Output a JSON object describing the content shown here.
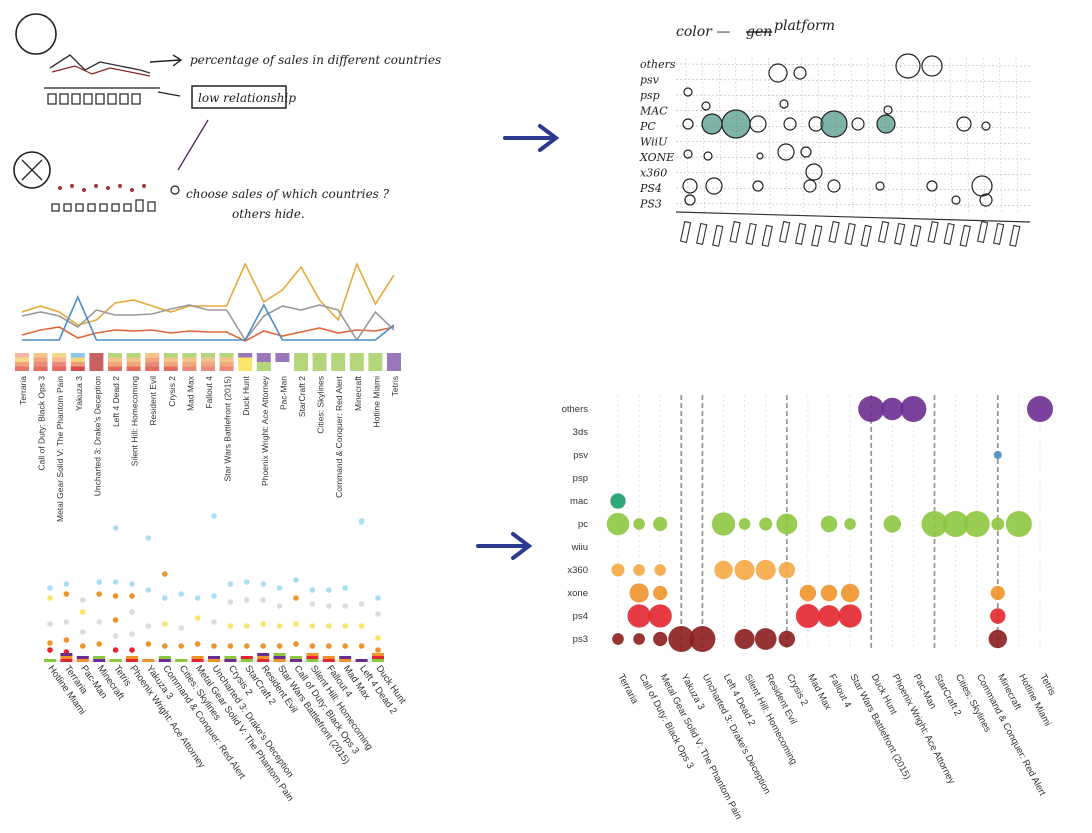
{
  "sketch_top_left": {
    "note_1": "percentage of sales in different countries",
    "note_2": "low relationship",
    "note_3": "choose sales of which countries ?",
    "note_4": "others hide."
  },
  "sketch_top_right": {
    "title_color": "color —",
    "title_strike": "gen",
    "title_platform": "platform",
    "rows": [
      "others",
      "psv",
      "psp",
      "MAC",
      "PC",
      "WiiU",
      "XONE",
      "x360",
      "PS4",
      "PS3"
    ]
  },
  "line_chart": {
    "colors": {
      "orange": "#e8a93a",
      "red": "#e0663a",
      "gray": "#9a9a9a",
      "blue": "#4a8fc8"
    }
  },
  "games_order_1": [
    "Terraria",
    "Call of Duty: Black Ops 3",
    "Metal Gear Solid V: The Phantom Pain",
    "Yakuza 3",
    "Uncharted 3: Drake's Deception",
    "Left 4 Dead 2",
    "Silent Hill: Homecoming",
    "Resident Evil",
    "Crysis 2",
    "Mad Max",
    "Fallout 4",
    "Star Wars Battlefront (2015)",
    "Duck Hunt",
    "Phoenix Wright: Ace Attorney",
    "Pac-Man",
    "StarCraft 2",
    "Cities: Skylines",
    "Command & Conquer: Red Alert",
    "Minecraft",
    "Hotline Miami",
    "Tetris"
  ],
  "games_order_2": [
    "Hotline Miami",
    "Terraria",
    "Pac-Man",
    "Minecraft",
    "Tetris",
    "Phoenix Wright: Ace Attorney",
    "Yakuza 3",
    "Command & Conquer: Red Alert",
    "Cities: Skylines",
    "Metal Gear Solid V: The Phantom Pain",
    "Uncharted 3: Drake's Deception",
    "Crysis 2",
    "StarCraft 2",
    "Resident Evil",
    "Star Wars Battlefront (2015)",
    "Call of Duty: Black Ops 3",
    "Silent Hill: Homecoming",
    "Fallout 4",
    "Mad Max",
    "Left 4 Dead 2",
    "Duck Hunt"
  ],
  "chart_data": {
    "type": "scatter",
    "title": "",
    "platforms": [
      "others",
      "3ds",
      "psv",
      "psp",
      "mac",
      "pc",
      "wiiu",
      "x360",
      "xone",
      "ps4",
      "ps3"
    ],
    "games": [
      "Terraria",
      "Call of Duty: Black Ops 3",
      "Metal Gear Solid V: The Phantom Pain",
      "Yakuza 3",
      "Uncharted 3: Drake's Deception",
      "Left 4 Dead 2",
      "Silent Hill: Homecoming",
      "Resident Evil",
      "Crysis 2",
      "Mad Max",
      "Fallout 4",
      "Star Wars Battlefront (2015)",
      "Duck Hunt",
      "Phoenix Wright: Ace Attorney",
      "Pac-Man",
      "StarCraft 2",
      "Cities: Skylines",
      "Command & Conquer: Red Alert",
      "Minecraft",
      "Hotline Miami",
      "Tetris"
    ],
    "platform_colors": {
      "others": "#6b2d8f",
      "3ds": "#6b2d8f",
      "psv": "#4a8fc8",
      "psp": "#4a8fc8",
      "mac": "#1aa06b",
      "pc": "#8dc63f",
      "wiiu": "#8dc63f",
      "x360": "#f5a742",
      "xone": "#f0932b",
      "ps4": "#e3262e",
      "ps3": "#8b1e1e"
    },
    "points": [
      {
        "game": 0,
        "platform": "mac",
        "size": 0.35
      },
      {
        "game": 0,
        "platform": "pc",
        "size": 0.75
      },
      {
        "game": 0,
        "platform": "x360",
        "size": 0.25
      },
      {
        "game": 0,
        "platform": "ps3",
        "size": 0.2
      },
      {
        "game": 1,
        "platform": "pc",
        "size": 0.2
      },
      {
        "game": 1,
        "platform": "x360",
        "size": 0.2
      },
      {
        "game": 1,
        "platform": "xone",
        "size": 0.55
      },
      {
        "game": 1,
        "platform": "ps4",
        "size": 0.8
      },
      {
        "game": 1,
        "platform": "ps3",
        "size": 0.2
      },
      {
        "game": 2,
        "platform": "pc",
        "size": 0.3
      },
      {
        "game": 2,
        "platform": "x360",
        "size": 0.2
      },
      {
        "game": 2,
        "platform": "xone",
        "size": 0.3
      },
      {
        "game": 2,
        "platform": "ps4",
        "size": 0.8
      },
      {
        "game": 2,
        "platform": "ps3",
        "size": 0.3
      },
      {
        "game": 3,
        "platform": "ps3",
        "size": 1.0
      },
      {
        "game": 4,
        "platform": "ps3",
        "size": 1.0
      },
      {
        "game": 5,
        "platform": "pc",
        "size": 0.8
      },
      {
        "game": 5,
        "platform": "x360",
        "size": 0.5
      },
      {
        "game": 6,
        "platform": "pc",
        "size": 0.2
      },
      {
        "game": 6,
        "platform": "x360",
        "size": 0.6
      },
      {
        "game": 6,
        "platform": "ps3",
        "size": 0.6
      },
      {
        "game": 7,
        "platform": "pc",
        "size": 0.25
      },
      {
        "game": 7,
        "platform": "x360",
        "size": 0.6
      },
      {
        "game": 7,
        "platform": "ps3",
        "size": 0.7
      },
      {
        "game": 8,
        "platform": "pc",
        "size": 0.65
      },
      {
        "game": 8,
        "platform": "x360",
        "size": 0.4
      },
      {
        "game": 8,
        "platform": "ps3",
        "size": 0.4
      },
      {
        "game": 9,
        "platform": "xone",
        "size": 0.4
      },
      {
        "game": 9,
        "platform": "ps4",
        "size": 0.85
      },
      {
        "game": 10,
        "platform": "pc",
        "size": 0.4
      },
      {
        "game": 10,
        "platform": "xone",
        "size": 0.4
      },
      {
        "game": 10,
        "platform": "ps4",
        "size": 0.7
      },
      {
        "game": 11,
        "platform": "pc",
        "size": 0.2
      },
      {
        "game": 11,
        "platform": "xone",
        "size": 0.5
      },
      {
        "game": 11,
        "platform": "ps4",
        "size": 0.8
      },
      {
        "game": 12,
        "platform": "others",
        "size": 1.0
      },
      {
        "game": 13,
        "platform": "others",
        "size": 0.75
      },
      {
        "game": 13,
        "platform": "pc",
        "size": 0.45
      },
      {
        "game": 14,
        "platform": "others",
        "size": 1.0
      },
      {
        "game": 15,
        "platform": "pc",
        "size": 1.0
      },
      {
        "game": 16,
        "platform": "pc",
        "size": 1.0
      },
      {
        "game": 17,
        "platform": "pc",
        "size": 1.0
      },
      {
        "game": 18,
        "platform": "psv",
        "size": 0.1
      },
      {
        "game": 18,
        "platform": "pc",
        "size": 0.25
      },
      {
        "game": 18,
        "platform": "xone",
        "size": 0.3
      },
      {
        "game": 18,
        "platform": "ps4",
        "size": 0.35
      },
      {
        "game": 18,
        "platform": "ps3",
        "size": 0.5
      },
      {
        "game": 19,
        "platform": "pc",
        "size": 1.0
      },
      {
        "game": 20,
        "platform": "others",
        "size": 1.0
      }
    ],
    "dashed_games": [
      3,
      4,
      8,
      12,
      15,
      18
    ]
  }
}
